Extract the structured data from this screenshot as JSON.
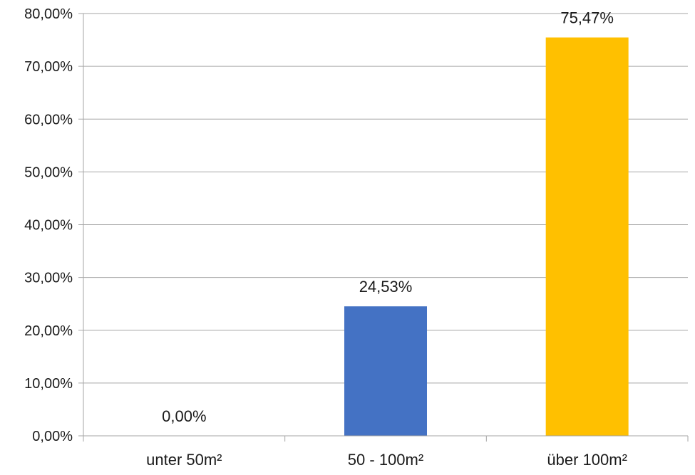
{
  "chart_data": {
    "type": "bar",
    "categories": [
      "unter 50m²",
      "50 - 100m²",
      "über 100m²"
    ],
    "values": [
      0.0,
      24.53,
      75.47
    ],
    "data_labels": [
      "0,00%",
      "24,53%",
      "75,47%"
    ],
    "bar_colors": [
      "#4472c4",
      "#4472c4",
      "#ffc000"
    ],
    "ylim": [
      0,
      80
    ],
    "y_ticks": [
      0,
      10,
      20,
      30,
      40,
      50,
      60,
      70,
      80
    ],
    "y_tick_labels": [
      "0,00%",
      "10,00%",
      "20,00%",
      "30,00%",
      "40,00%",
      "50,00%",
      "60,00%",
      "70,00%",
      "80,00%"
    ],
    "grid": true,
    "legend": "none"
  }
}
